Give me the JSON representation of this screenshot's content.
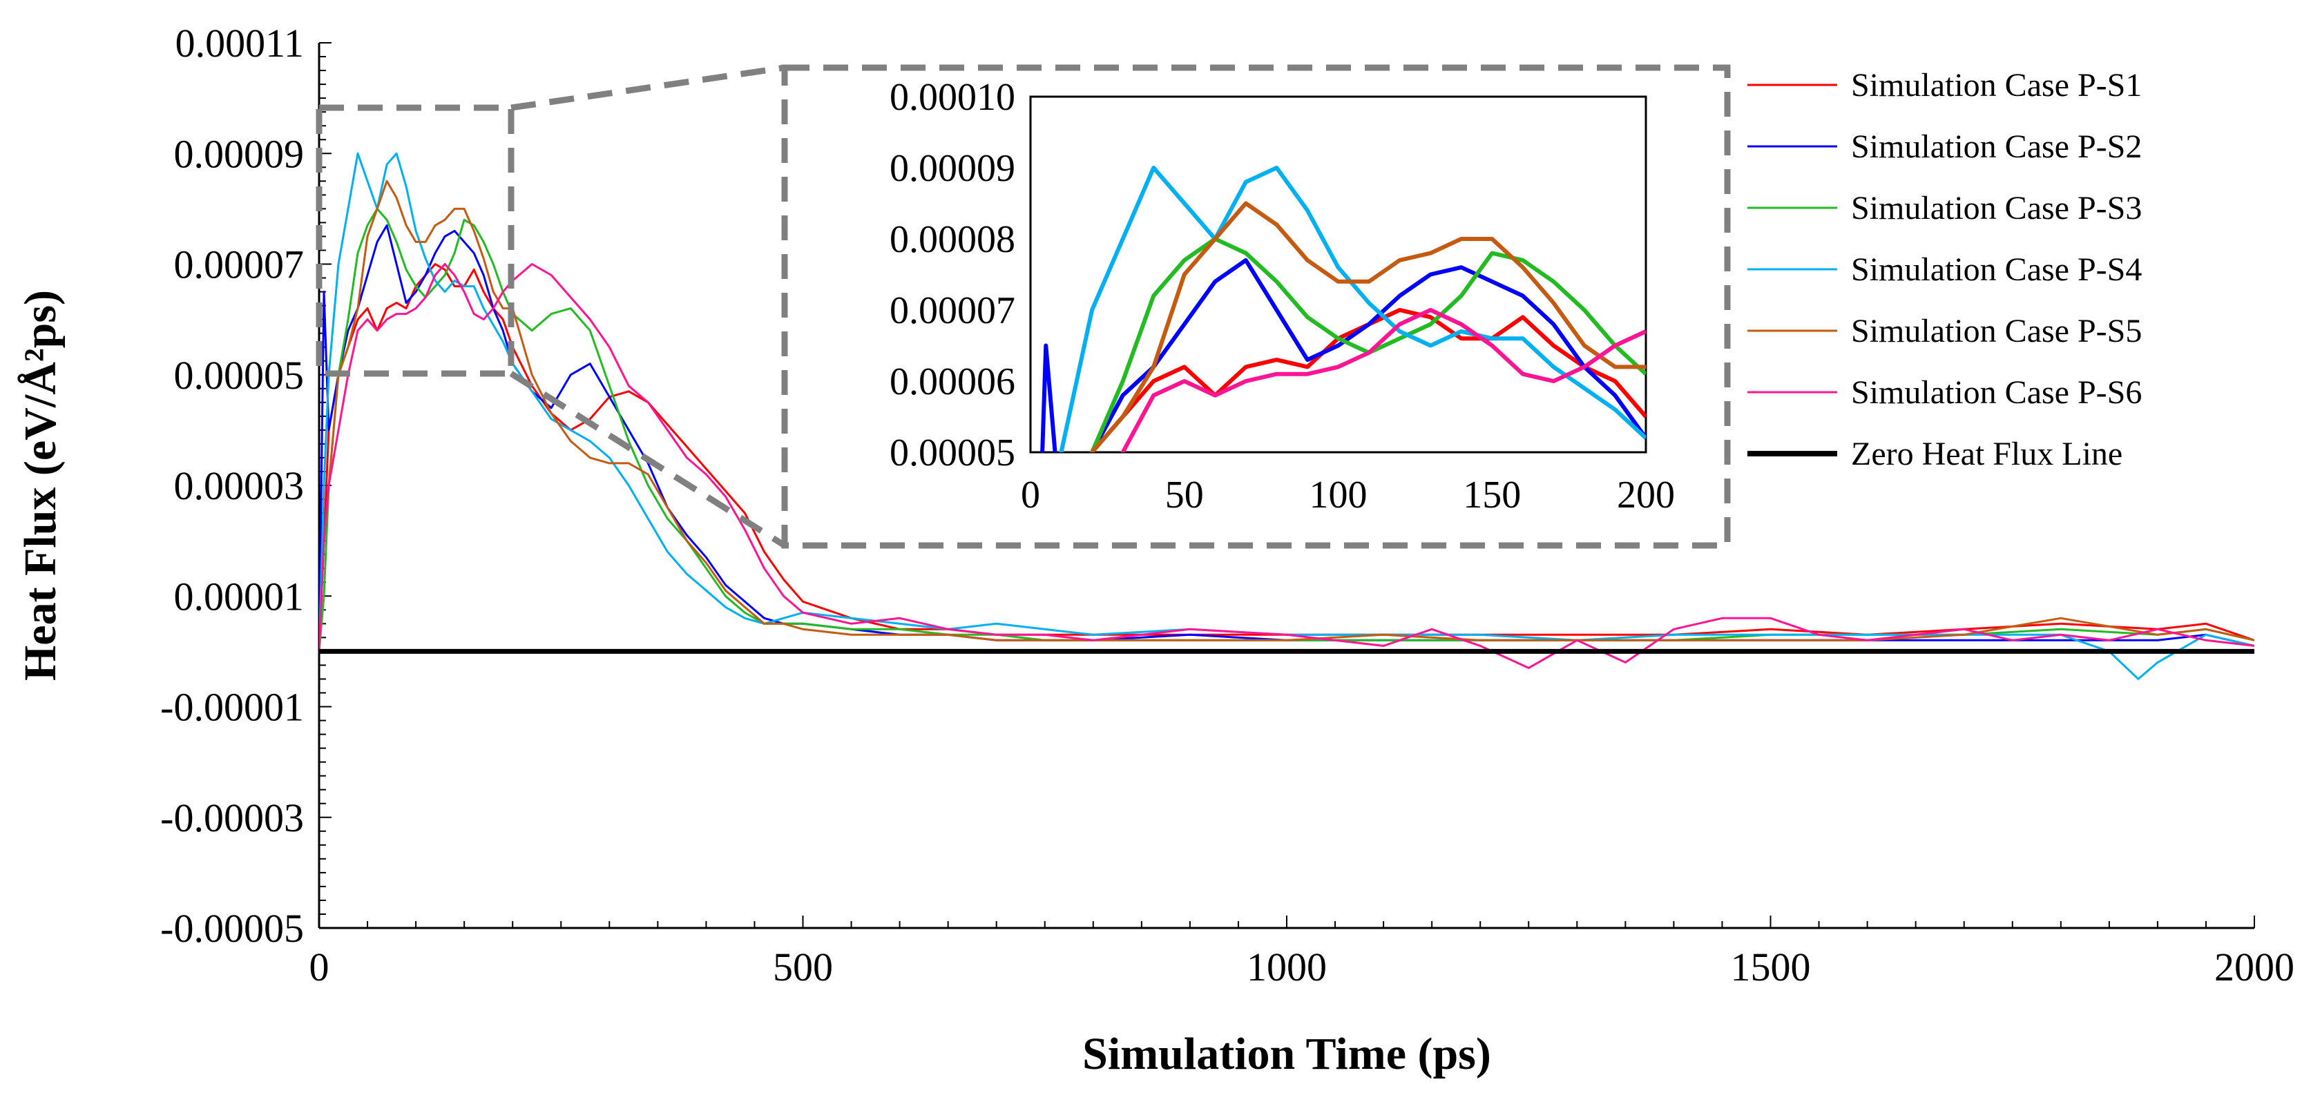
{
  "chart_data": {
    "type": "line",
    "title": "",
    "xlabel": "Simulation Time (ps)",
    "ylabel": "Heat Flux (eV/Å²ps)",
    "xlim": [
      0,
      2000
    ],
    "ylim": [
      -5e-05,
      0.00011
    ],
    "x_ticks": [
      "0",
      "500",
      "1000",
      "1500",
      "2000"
    ],
    "y_ticks": [
      "0.00011",
      "0.00009",
      "0.00007",
      "0.00005",
      "0.00003",
      "0.00001",
      "-0.00001",
      "-0.00003",
      "-0.00005"
    ],
    "grid": false,
    "legend_position": "top-right",
    "series": [
      {
        "name": "Simulation Case P-S1",
        "color": "#ff0000",
        "x": [
          0,
          5,
          10,
          20,
          30,
          40,
          50,
          60,
          70,
          80,
          90,
          100,
          110,
          120,
          130,
          140,
          150,
          160,
          170,
          180,
          190,
          200,
          220,
          240,
          260,
          280,
          300,
          320,
          340,
          360,
          380,
          400,
          420,
          440,
          460,
          480,
          500,
          550,
          600,
          650,
          700,
          750,
          800,
          900,
          1000,
          1100,
          1200,
          1300,
          1400,
          1500,
          1600,
          1700,
          1800,
          1900,
          1950,
          2000
        ],
        "y": [
          0.0,
          2e-05,
          4e-05,
          5e-05,
          5.5e-05,
          6e-05,
          6.2e-05,
          5.8e-05,
          6.2e-05,
          6.3e-05,
          6.2e-05,
          6.6e-05,
          6.8e-05,
          7e-05,
          6.9e-05,
          6.6e-05,
          6.6e-05,
          6.9e-05,
          6.5e-05,
          6.2e-05,
          6e-05,
          5.5e-05,
          4.8e-05,
          4.3e-05,
          4e-05,
          4.2e-05,
          4.6e-05,
          4.7e-05,
          4.5e-05,
          4.1e-05,
          3.7e-05,
          3.3e-05,
          2.9e-05,
          2.5e-05,
          1.8e-05,
          1.3e-05,
          9e-06,
          6e-06,
          4e-06,
          4e-06,
          3e-06,
          3e-06,
          3e-06,
          3e-06,
          3e-06,
          3e-06,
          3e-06,
          3e-06,
          3e-06,
          4e-06,
          3e-06,
          4e-06,
          5e-06,
          4e-06,
          5e-06,
          2e-06
        ]
      },
      {
        "name": "Simulation Case P-S2",
        "color": "#0000ff",
        "x": [
          0,
          5,
          10,
          20,
          30,
          40,
          50,
          60,
          70,
          80,
          90,
          100,
          110,
          120,
          130,
          140,
          150,
          160,
          170,
          180,
          190,
          200,
          220,
          240,
          260,
          280,
          300,
          320,
          340,
          360,
          380,
          400,
          420,
          440,
          460,
          480,
          500,
          550,
          600,
          650,
          700,
          750,
          800,
          900,
          1000,
          1100,
          1200,
          1300,
          1400,
          1500,
          1600,
          1700,
          1800,
          1900,
          1950,
          2000
        ],
        "y": [
          0.0,
          6.5e-05,
          4e-05,
          5e-05,
          5.8e-05,
          6.2e-05,
          6.8e-05,
          7.4e-05,
          7.7e-05,
          7e-05,
          6.3e-05,
          6.5e-05,
          6.8e-05,
          7.2e-05,
          7.5e-05,
          7.6e-05,
          7.4e-05,
          7.2e-05,
          6.8e-05,
          6.2e-05,
          5.8e-05,
          5.2e-05,
          4.7e-05,
          4.4e-05,
          5e-05,
          5.2e-05,
          4.6e-05,
          4e-05,
          3.4e-05,
          2.6e-05,
          2.1e-05,
          1.7e-05,
          1.2e-05,
          9e-06,
          6e-06,
          5e-06,
          5e-06,
          4e-06,
          3e-06,
          3e-06,
          2e-06,
          2e-06,
          2e-06,
          3e-06,
          2e-06,
          2e-06,
          2e-06,
          2e-06,
          2e-06,
          2e-06,
          2e-06,
          2e-06,
          2e-06,
          2e-06,
          3e-06,
          1e-06
        ]
      },
      {
        "name": "Simulation Case P-S3",
        "color": "#22bb22",
        "x": [
          0,
          5,
          10,
          20,
          30,
          40,
          50,
          60,
          70,
          80,
          90,
          100,
          110,
          120,
          130,
          140,
          150,
          160,
          170,
          180,
          190,
          200,
          220,
          240,
          260,
          280,
          300,
          320,
          340,
          360,
          380,
          400,
          420,
          440,
          460,
          480,
          500,
          550,
          600,
          650,
          700,
          750,
          800,
          900,
          1000,
          1100,
          1200,
          1300,
          1400,
          1500,
          1600,
          1700,
          1800,
          1900,
          1950,
          2000
        ],
        "y": [
          0.0,
          1e-05,
          3e-05,
          5e-05,
          6e-05,
          7.2e-05,
          7.7e-05,
          8e-05,
          7.8e-05,
          7.4e-05,
          6.9e-05,
          6.6e-05,
          6.4e-05,
          6.6e-05,
          6.8e-05,
          7.2e-05,
          7.8e-05,
          7.7e-05,
          7.4e-05,
          7e-05,
          6.5e-05,
          6.1e-05,
          5.8e-05,
          6.1e-05,
          6.2e-05,
          5.8e-05,
          4.8e-05,
          3.8e-05,
          3e-05,
          2.4e-05,
          2e-05,
          1.5e-05,
          1e-05,
          7e-06,
          5e-06,
          5e-06,
          5e-06,
          4e-06,
          4e-06,
          3e-06,
          3e-06,
          2e-06,
          2e-06,
          2e-06,
          2e-06,
          2e-06,
          2e-06,
          2e-06,
          2e-06,
          3e-06,
          3e-06,
          3e-06,
          4e-06,
          3e-06,
          4e-06,
          2e-06
        ]
      },
      {
        "name": "Simulation Case P-S4",
        "color": "#00b0f0",
        "x": [
          0,
          5,
          10,
          20,
          30,
          40,
          50,
          60,
          70,
          80,
          90,
          100,
          110,
          120,
          130,
          140,
          150,
          160,
          170,
          180,
          190,
          200,
          220,
          240,
          260,
          280,
          300,
          320,
          340,
          360,
          380,
          400,
          420,
          440,
          460,
          480,
          500,
          550,
          600,
          650,
          700,
          750,
          800,
          900,
          1000,
          1100,
          1200,
          1300,
          1400,
          1500,
          1600,
          1700,
          1800,
          1850,
          1880,
          1900,
          1950,
          2000
        ],
        "y": [
          0.0,
          3e-05,
          5e-05,
          7e-05,
          8e-05,
          9e-05,
          8.5e-05,
          8e-05,
          8.8e-05,
          9e-05,
          8.4e-05,
          7.6e-05,
          7.1e-05,
          6.7e-05,
          6.5e-05,
          6.7e-05,
          6.6e-05,
          6.6e-05,
          6.2e-05,
          5.9e-05,
          5.6e-05,
          5.2e-05,
          4.7e-05,
          4.2e-05,
          4e-05,
          3.8e-05,
          3.5e-05,
          3e-05,
          2.4e-05,
          1.8e-05,
          1.4e-05,
          1.1e-05,
          8e-06,
          6e-06,
          5e-06,
          6e-06,
          7e-06,
          6e-06,
          5e-06,
          4e-06,
          5e-06,
          4e-06,
          3e-06,
          4e-06,
          3e-06,
          3e-06,
          3e-06,
          2e-06,
          3e-06,
          3e-06,
          3e-06,
          3e-06,
          3e-06,
          0.0,
          -5e-06,
          -2e-06,
          3e-06,
          1e-06
        ]
      },
      {
        "name": "Simulation Case P-S5",
        "color": "#c55a11",
        "x": [
          0,
          5,
          10,
          20,
          30,
          40,
          50,
          60,
          70,
          80,
          90,
          100,
          110,
          120,
          130,
          140,
          150,
          160,
          170,
          180,
          190,
          200,
          220,
          240,
          260,
          280,
          300,
          320,
          340,
          360,
          380,
          400,
          420,
          440,
          460,
          480,
          500,
          550,
          600,
          650,
          700,
          750,
          800,
          900,
          1000,
          1100,
          1200,
          1300,
          1400,
          1500,
          1600,
          1700,
          1800,
          1900,
          1950,
          2000
        ],
        "y": [
          0.0,
          2e-05,
          3e-05,
          5e-05,
          5.5e-05,
          6.2e-05,
          7.5e-05,
          8e-05,
          8.5e-05,
          8.2e-05,
          7.7e-05,
          7.4e-05,
          7.4e-05,
          7.7e-05,
          7.8e-05,
          8e-05,
          8e-05,
          7.6e-05,
          7.1e-05,
          6.5e-05,
          6.2e-05,
          6.2e-05,
          5e-05,
          4.3e-05,
          3.8e-05,
          3.5e-05,
          3.4e-05,
          3.4e-05,
          3.2e-05,
          2.6e-05,
          2e-05,
          1.6e-05,
          1.1e-05,
          8e-06,
          5e-06,
          5e-06,
          4e-06,
          3e-06,
          3e-06,
          3e-06,
          2e-06,
          2e-06,
          2e-06,
          2e-06,
          2e-06,
          3e-06,
          2e-06,
          2e-06,
          2e-06,
          2e-06,
          2e-06,
          3e-06,
          6e-06,
          3e-06,
          4e-06,
          2e-06
        ]
      },
      {
        "name": "Simulation Case P-S6",
        "color": "#ff1493",
        "x": [
          0,
          5,
          10,
          20,
          30,
          40,
          50,
          60,
          70,
          80,
          90,
          100,
          110,
          120,
          130,
          140,
          150,
          160,
          170,
          180,
          190,
          200,
          220,
          240,
          260,
          280,
          300,
          320,
          340,
          360,
          380,
          400,
          420,
          440,
          460,
          480,
          500,
          550,
          600,
          650,
          700,
          750,
          800,
          900,
          1000,
          1100,
          1150,
          1200,
          1250,
          1300,
          1350,
          1400,
          1450,
          1500,
          1550,
          1600,
          1650,
          1700,
          1750,
          1800,
          1850,
          1900,
          1950,
          2000
        ],
        "y": [
          0.0,
          2e-05,
          3e-05,
          4e-05,
          5e-05,
          5.8e-05,
          6e-05,
          5.8e-05,
          6e-05,
          6.1e-05,
          6.1e-05,
          6.2e-05,
          6.4e-05,
          6.8e-05,
          7e-05,
          6.8e-05,
          6.5e-05,
          6.1e-05,
          6e-05,
          6.2e-05,
          6.5e-05,
          6.7e-05,
          7e-05,
          6.8e-05,
          6.4e-05,
          6e-05,
          5.5e-05,
          4.8e-05,
          4.5e-05,
          4e-05,
          3.5e-05,
          3.2e-05,
          2.8e-05,
          2.2e-05,
          1.5e-05,
          1e-05,
          7e-06,
          5e-06,
          6e-06,
          4e-06,
          3e-06,
          3e-06,
          2e-06,
          4e-06,
          3e-06,
          1e-06,
          4e-06,
          1e-06,
          -3e-06,
          2e-06,
          -2e-06,
          4e-06,
          6e-06,
          6e-06,
          3e-06,
          2e-06,
          3e-06,
          4e-06,
          2e-06,
          3e-06,
          2e-06,
          4e-06,
          2e-06,
          1e-06
        ]
      },
      {
        "name": "Zero Heat Flux Line",
        "color": "#000000",
        "x": [
          0,
          2000
        ],
        "y": [
          0,
          0
        ]
      }
    ],
    "inset": {
      "xlim": [
        0,
        200
      ],
      "ylim": [
        5e-05,
        0.0001
      ],
      "x_ticks": [
        "0",
        "50",
        "100",
        "150",
        "200"
      ],
      "y_ticks": [
        "0.00010",
        "0.00009",
        "0.00008",
        "0.00007",
        "0.00006",
        "0.00005"
      ]
    }
  }
}
